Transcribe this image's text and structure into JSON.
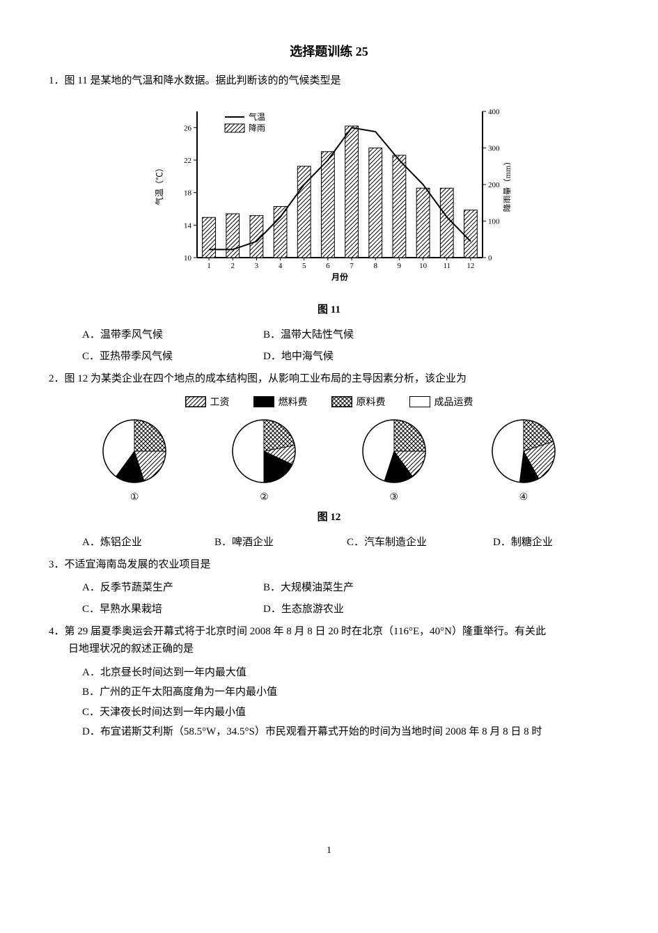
{
  "page_number": "1",
  "title": "选择题训练 25",
  "q1": {
    "stem": "1．图 11 是某地的气温和降水数据。据此判断该的的气候类型是",
    "fig_caption": "图 11",
    "options": {
      "A": "A．温带季风气候",
      "B": "B．温带大陆性气候",
      "C": "C．亚热带季风气候",
      "D": "D．地中海气候"
    },
    "chart": {
      "type": "combo-bar-line",
      "months": [
        "1",
        "2",
        "3",
        "4",
        "5",
        "6",
        "7",
        "8",
        "9",
        "10",
        "11",
        "12"
      ],
      "x_label": "月份",
      "y1_label": "气温（℃）",
      "y2_label": "降雨量（mm）",
      "y1_ticks": [
        10,
        14,
        18,
        22,
        26
      ],
      "y1_lim": [
        10,
        28
      ],
      "y2_ticks": [
        0,
        100,
        200,
        300,
        400
      ],
      "y2_lim": [
        0,
        400
      ],
      "temperature": [
        11,
        11,
        12,
        15,
        19,
        22,
        26,
        25.5,
        22,
        19,
        15,
        12
      ],
      "rainfall": [
        110,
        120,
        115,
        140,
        250,
        290,
        360,
        300,
        280,
        190,
        190,
        130
      ],
      "bar_fill": "hatch-diag",
      "bar_stroke": "#000000",
      "line_color": "#000000",
      "line_width": 2,
      "bg": "#ffffff",
      "axis_color": "#000000",
      "tick_fontsize": 11,
      "label_fontsize": 12,
      "legend": [
        {
          "type": "line",
          "label": "气温",
          "swatch": "line"
        },
        {
          "type": "bar",
          "label": "降雨",
          "swatch": "hatch-diag"
        }
      ],
      "bar_width_rel": 0.55
    }
  },
  "q2": {
    "stem": "2．图 12 为某类企业在四个地点的成本结构图，从影响工业布局的主导因素分析，该企业为",
    "fig_caption": "图 12",
    "legend": [
      {
        "label": "工资",
        "pattern": "hatch-diag",
        "color": "#ffffff"
      },
      {
        "label": "燃料费",
        "pattern": "solid",
        "color": "#000000"
      },
      {
        "label": "原料费",
        "pattern": "crosshatch",
        "color": "#ffffff"
      },
      {
        "label": "成品运费",
        "pattern": "none",
        "color": "#ffffff"
      }
    ],
    "pies": [
      {
        "id": "①",
        "slices": [
          {
            "cat": "原料费",
            "val": 25
          },
          {
            "cat": "工资",
            "val": 20
          },
          {
            "cat": "燃料费",
            "val": 15
          },
          {
            "cat": "成品运费",
            "val": 40
          }
        ]
      },
      {
        "id": "②",
        "slices": [
          {
            "cat": "原料费",
            "val": 22
          },
          {
            "cat": "工资",
            "val": 10
          },
          {
            "cat": "燃料费",
            "val": 18
          },
          {
            "cat": "成品运费",
            "val": 50
          }
        ]
      },
      {
        "id": "③",
        "slices": [
          {
            "cat": "原料费",
            "val": 25
          },
          {
            "cat": "工资",
            "val": 15
          },
          {
            "cat": "燃料费",
            "val": 15
          },
          {
            "cat": "成品运费",
            "val": 45
          }
        ]
      },
      {
        "id": "④",
        "slices": [
          {
            "cat": "原料费",
            "val": 20
          },
          {
            "cat": "工资",
            "val": 22
          },
          {
            "cat": "燃料费",
            "val": 10
          },
          {
            "cat": "成品运费",
            "val": 48
          }
        ]
      }
    ],
    "pie_colors": {
      "原料费": "crosshatch",
      "工资": "hatch-diag",
      "燃料费": "solid-black",
      "成品运费": "white"
    },
    "pie_radius": 45,
    "pie_stroke": "#000000",
    "options": {
      "A": "A．炼铝企业",
      "B": "B．啤酒企业",
      "C": "C．汽车制造企业",
      "D": "D．制糖企业"
    }
  },
  "q3": {
    "stem": "3．不适宜海南岛发展的农业项目是",
    "options": {
      "A": "A．反季节蔬菜生产",
      "B": "B．大规模油菜生产",
      "C": "C．早熟水果栽培",
      "D": "D．生态旅游农业"
    }
  },
  "q4": {
    "stem_l1": "4．第 29 届夏季奥运会开幕式将于北京时间 2008 年 8 月 8 日 20 时在北京（116°E，40°N）隆重举行。有关此",
    "stem_l2": "日地理状况的叙述正确的是",
    "options": {
      "A": "A．北京昼长时间达到一年内最大值",
      "B": "B．广州的正午太阳高度角为一年内最小值",
      "C": "C．天津夜长时间达到一年内最小值",
      "D": "D．布宜诺斯艾利斯（58.5°W，34.5°S）市民观看开幕式开始的时间为当地时间 2008 年 8 月 8 日 8 时"
    }
  }
}
